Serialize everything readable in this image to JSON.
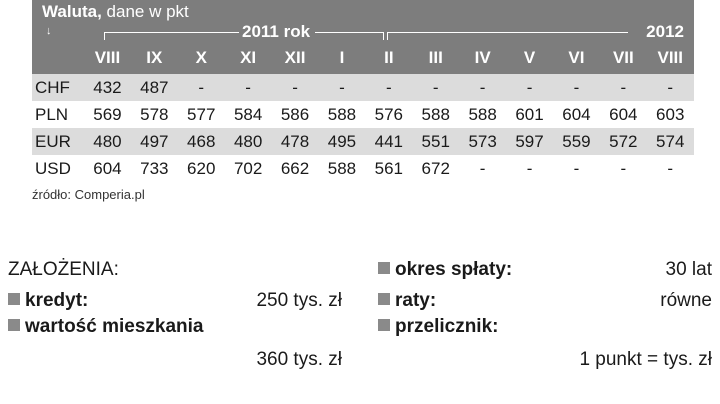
{
  "table": {
    "title_bold": "Waluta,",
    "title_rest": " dane w pkt",
    "sort_arrow": "↓",
    "year1": "2011 rok",
    "year2": "2012",
    "months": [
      "VIII",
      "IX",
      "X",
      "XI",
      "XII",
      "I",
      "II",
      "III",
      "IV",
      "V",
      "VI",
      "VII",
      "VIII"
    ],
    "rows": [
      {
        "currency": "CHF",
        "values": [
          "432",
          "487",
          "-",
          "-",
          "-",
          "-",
          "-",
          "-",
          "-",
          "-",
          "-",
          "-",
          "-"
        ]
      },
      {
        "currency": "PLN",
        "values": [
          "569",
          "578",
          "577",
          "584",
          "586",
          "588",
          "576",
          "588",
          "588",
          "601",
          "604",
          "604",
          "603"
        ]
      },
      {
        "currency": "EUR",
        "values": [
          "480",
          "497",
          "468",
          "480",
          "478",
          "495",
          "441",
          "551",
          "573",
          "597",
          "559",
          "572",
          "574"
        ]
      },
      {
        "currency": "USD",
        "values": [
          "604",
          "733",
          "620",
          "702",
          "662",
          "588",
          "561",
          "672",
          "-",
          "-",
          "-",
          "-",
          "-"
        ]
      }
    ],
    "source": "źródło: Comperia.pl"
  },
  "assumptions": {
    "heading": "ZAŁOŻENIA:",
    "kredyt_label": "kredyt:",
    "kredyt_value": "250 tys. zł",
    "wartosc_label": "wartość mieszkania",
    "wartosc_value": "360 tys. zł",
    "okres_label": "okres spłaty:",
    "okres_value": "30 lat",
    "raty_label": "raty:",
    "raty_value": "równe",
    "przelicznik_label": "przelicznik:",
    "przelicznik_value": "1 punkt =  tys. zł"
  }
}
